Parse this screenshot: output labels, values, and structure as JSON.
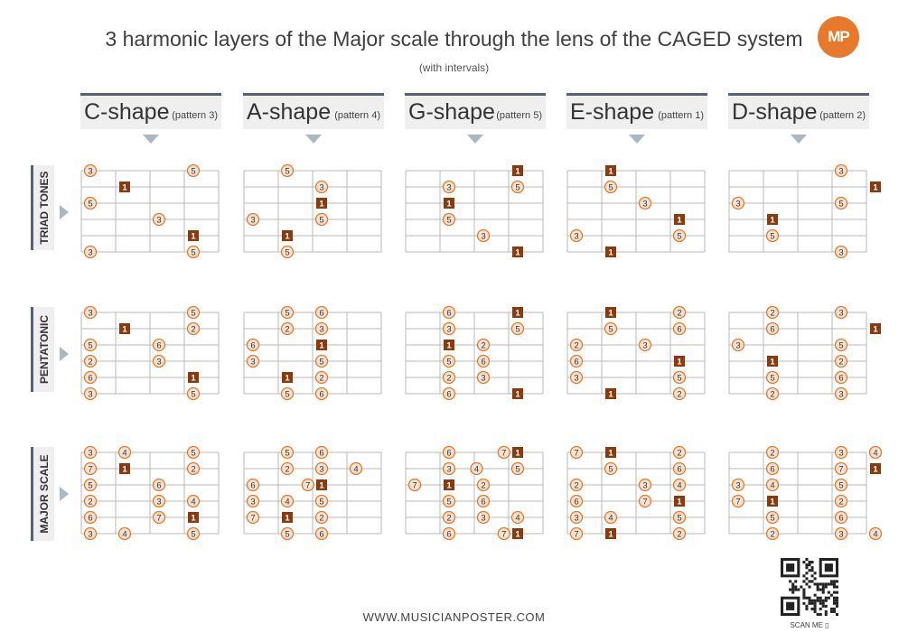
{
  "title": "3 harmonic layers of the Major scale through the lens of the CAGED system",
  "subtitle": "(with intervals)",
  "logo": "MP",
  "footer_url": "WWW.MUSICIANPOSTER.COM",
  "scan_label": "SCAN ME",
  "colors": {
    "root": "#8b3a0c",
    "note_fill": "#fde3cf",
    "note_stroke": "#e8792b",
    "accent": "#4f6478",
    "arrow": "#aab8c4"
  },
  "shapes": [
    {
      "name": "C-shape",
      "pattern": "(pattern 3)"
    },
    {
      "name": "A-shape",
      "pattern": "(pattern 4)"
    },
    {
      "name": "G-shape",
      "pattern": "(pattern 5)"
    },
    {
      "name": "E-shape",
      "pattern": "(pattern 1)"
    },
    {
      "name": "D-shape",
      "pattern": "(pattern 2)"
    }
  ],
  "rows": [
    {
      "label": "TRIAD TONES"
    },
    {
      "label": "PENTATONIC"
    },
    {
      "label": "MAJOR SCALE"
    }
  ],
  "diagrams": [
    [
      [
        {
          "s": 0,
          "p": 0,
          "v": "3"
        },
        {
          "s": 0,
          "p": 3,
          "v": "5"
        },
        {
          "s": 1,
          "p": 1,
          "v": "1",
          "r": true
        },
        {
          "s": 2,
          "p": 0,
          "v": "5"
        },
        {
          "s": 3,
          "p": 2,
          "v": "3"
        },
        {
          "s": 4,
          "p": 3,
          "v": "1",
          "r": true
        },
        {
          "s": 5,
          "p": 0,
          "v": "3"
        },
        {
          "s": 5,
          "p": 3,
          "v": "5"
        }
      ],
      [
        {
          "s": 0,
          "p": 1,
          "v": "5"
        },
        {
          "s": 1,
          "p": 2,
          "v": "3"
        },
        {
          "s": 2,
          "p": 2,
          "v": "1",
          "r": true
        },
        {
          "s": 3,
          "p": 0,
          "v": "3"
        },
        {
          "s": 3,
          "p": 2,
          "v": "5"
        },
        {
          "s": 4,
          "p": 1,
          "v": "1",
          "r": true
        },
        {
          "s": 5,
          "p": 1,
          "v": "5"
        }
      ],
      [
        {
          "s": 0,
          "p": 3,
          "v": "1",
          "r": true
        },
        {
          "s": 1,
          "p": 1,
          "v": "3"
        },
        {
          "s": 1,
          "p": 3,
          "v": "5"
        },
        {
          "s": 2,
          "p": 1,
          "v": "1",
          "r": true
        },
        {
          "s": 3,
          "p": 1,
          "v": "5"
        },
        {
          "s": 4,
          "p": 2,
          "v": "3"
        },
        {
          "s": 5,
          "p": 3,
          "v": "1",
          "r": true
        }
      ],
      [
        {
          "s": 0,
          "p": 1,
          "v": "1",
          "r": true
        },
        {
          "s": 1,
          "p": 1,
          "v": "5"
        },
        {
          "s": 2,
          "p": 2,
          "v": "3"
        },
        {
          "s": 3,
          "p": 3,
          "v": "1",
          "r": true
        },
        {
          "s": 4,
          "p": 0,
          "v": "3"
        },
        {
          "s": 4,
          "p": 3,
          "v": "5"
        },
        {
          "s": 5,
          "p": 1,
          "v": "1",
          "r": true
        }
      ],
      [
        {
          "s": 0,
          "p": 3,
          "v": "3"
        },
        {
          "s": 1,
          "p": 4,
          "v": "1",
          "r": true
        },
        {
          "s": 2,
          "p": 0,
          "v": "3"
        },
        {
          "s": 2,
          "p": 3,
          "v": "5"
        },
        {
          "s": 3,
          "p": 1,
          "v": "1",
          "r": true
        },
        {
          "s": 4,
          "p": 1,
          "v": "5"
        },
        {
          "s": 5,
          "p": 3,
          "v": "3"
        }
      ]
    ],
    [
      [
        {
          "s": 0,
          "p": 0,
          "v": "3"
        },
        {
          "s": 0,
          "p": 3,
          "v": "5"
        },
        {
          "s": 1,
          "p": 1,
          "v": "1",
          "r": true
        },
        {
          "s": 1,
          "p": 3,
          "v": "2"
        },
        {
          "s": 2,
          "p": 0,
          "v": "5"
        },
        {
          "s": 2,
          "p": 2,
          "v": "6"
        },
        {
          "s": 3,
          "p": 0,
          "v": "2"
        },
        {
          "s": 3,
          "p": 2,
          "v": "3"
        },
        {
          "s": 4,
          "p": 0,
          "v": "6"
        },
        {
          "s": 4,
          "p": 3,
          "v": "1",
          "r": true
        },
        {
          "s": 5,
          "p": 0,
          "v": "3"
        },
        {
          "s": 5,
          "p": 3,
          "v": "5"
        }
      ],
      [
        {
          "s": 0,
          "p": 1,
          "v": "5"
        },
        {
          "s": 0,
          "p": 2,
          "v": "6"
        },
        {
          "s": 1,
          "p": 1,
          "v": "2"
        },
        {
          "s": 1,
          "p": 2,
          "v": "3"
        },
        {
          "s": 2,
          "p": 0,
          "v": "6"
        },
        {
          "s": 2,
          "p": 2,
          "v": "1",
          "r": true
        },
        {
          "s": 3,
          "p": 0,
          "v": "3"
        },
        {
          "s": 3,
          "p": 2,
          "v": "5"
        },
        {
          "s": 4,
          "p": 1,
          "v": "1",
          "r": true
        },
        {
          "s": 4,
          "p": 2,
          "v": "2"
        },
        {
          "s": 5,
          "p": 1,
          "v": "5"
        },
        {
          "s": 5,
          "p": 2,
          "v": "6"
        }
      ],
      [
        {
          "s": 0,
          "p": 1,
          "v": "6"
        },
        {
          "s": 0,
          "p": 3,
          "v": "1",
          "r": true
        },
        {
          "s": 1,
          "p": 1,
          "v": "3"
        },
        {
          "s": 1,
          "p": 3,
          "v": "5"
        },
        {
          "s": 2,
          "p": 1,
          "v": "1",
          "r": true
        },
        {
          "s": 2,
          "p": 2,
          "v": "2"
        },
        {
          "s": 3,
          "p": 1,
          "v": "5"
        },
        {
          "s": 3,
          "p": 2,
          "v": "6"
        },
        {
          "s": 4,
          "p": 1,
          "v": "2"
        },
        {
          "s": 4,
          "p": 2,
          "v": "3"
        },
        {
          "s": 5,
          "p": 1,
          "v": "6"
        },
        {
          "s": 5,
          "p": 3,
          "v": "1",
          "r": true
        }
      ],
      [
        {
          "s": 0,
          "p": 1,
          "v": "1",
          "r": true
        },
        {
          "s": 0,
          "p": 3,
          "v": "2"
        },
        {
          "s": 1,
          "p": 1,
          "v": "5"
        },
        {
          "s": 1,
          "p": 3,
          "v": "6"
        },
        {
          "s": 2,
          "p": 0,
          "v": "2"
        },
        {
          "s": 2,
          "p": 2,
          "v": "3"
        },
        {
          "s": 3,
          "p": 0,
          "v": "6"
        },
        {
          "s": 3,
          "p": 3,
          "v": "1",
          "r": true
        },
        {
          "s": 4,
          "p": 0,
          "v": "3"
        },
        {
          "s": 4,
          "p": 3,
          "v": "5"
        },
        {
          "s": 5,
          "p": 1,
          "v": "1",
          "r": true
        },
        {
          "s": 5,
          "p": 3,
          "v": "2"
        }
      ],
      [
        {
          "s": 0,
          "p": 1,
          "v": "2"
        },
        {
          "s": 0,
          "p": 3,
          "v": "3"
        },
        {
          "s": 1,
          "p": 1,
          "v": "6"
        },
        {
          "s": 1,
          "p": 4,
          "v": "1",
          "r": true
        },
        {
          "s": 2,
          "p": 0,
          "v": "3"
        },
        {
          "s": 2,
          "p": 3,
          "v": "5"
        },
        {
          "s": 3,
          "p": 1,
          "v": "1",
          "r": true
        },
        {
          "s": 3,
          "p": 3,
          "v": "2"
        },
        {
          "s": 4,
          "p": 1,
          "v": "5"
        },
        {
          "s": 4,
          "p": 3,
          "v": "6"
        },
        {
          "s": 5,
          "p": 1,
          "v": "2"
        },
        {
          "s": 5,
          "p": 3,
          "v": "3"
        }
      ]
    ],
    [
      [
        {
          "s": 0,
          "p": 0,
          "v": "3"
        },
        {
          "s": 0,
          "p": 1,
          "v": "4"
        },
        {
          "s": 0,
          "p": 3,
          "v": "5"
        },
        {
          "s": 1,
          "p": 0,
          "v": "7"
        },
        {
          "s": 1,
          "p": 1,
          "v": "1",
          "r": true
        },
        {
          "s": 1,
          "p": 3,
          "v": "2"
        },
        {
          "s": 2,
          "p": 0,
          "v": "5"
        },
        {
          "s": 2,
          "p": 2,
          "v": "6"
        },
        {
          "s": 3,
          "p": 0,
          "v": "2"
        },
        {
          "s": 3,
          "p": 2,
          "v": "3"
        },
        {
          "s": 3,
          "p": 3,
          "v": "4"
        },
        {
          "s": 4,
          "p": 0,
          "v": "6"
        },
        {
          "s": 4,
          "p": 2,
          "v": "7"
        },
        {
          "s": 4,
          "p": 3,
          "v": "1",
          "r": true
        },
        {
          "s": 5,
          "p": 0,
          "v": "3"
        },
        {
          "s": 5,
          "p": 1,
          "v": "4"
        },
        {
          "s": 5,
          "p": 3,
          "v": "5"
        }
      ],
      [
        {
          "s": 0,
          "p": 1,
          "v": "5"
        },
        {
          "s": 0,
          "p": 2,
          "v": "6"
        },
        {
          "s": 1,
          "p": 1,
          "v": "2"
        },
        {
          "s": 1,
          "p": 2,
          "v": "3"
        },
        {
          "s": 1,
          "p": 3,
          "v": "4"
        },
        {
          "s": 2,
          "p": 0,
          "v": "6"
        },
        {
          "s": 2,
          "p": 1.6,
          "v": "7"
        },
        {
          "s": 2,
          "p": 2,
          "v": "1",
          "r": true
        },
        {
          "s": 3,
          "p": 0,
          "v": "3"
        },
        {
          "s": 3,
          "p": 1,
          "v": "4"
        },
        {
          "s": 3,
          "p": 2,
          "v": "5"
        },
        {
          "s": 4,
          "p": 0,
          "v": "7"
        },
        {
          "s": 4,
          "p": 1,
          "v": "1",
          "r": true
        },
        {
          "s": 4,
          "p": 2,
          "v": "2"
        },
        {
          "s": 5,
          "p": 1,
          "v": "5"
        },
        {
          "s": 5,
          "p": 2,
          "v": "6"
        }
      ],
      [
        {
          "s": 0,
          "p": 1,
          "v": "6"
        },
        {
          "s": 0,
          "p": 2.6,
          "v": "7"
        },
        {
          "s": 0,
          "p": 3,
          "v": "1",
          "r": true
        },
        {
          "s": 1,
          "p": 1,
          "v": "3"
        },
        {
          "s": 1,
          "p": 1.8,
          "v": "4"
        },
        {
          "s": 1,
          "p": 3,
          "v": "5"
        },
        {
          "s": 2,
          "p": 0,
          "v": "7"
        },
        {
          "s": 2,
          "p": 1,
          "v": "1",
          "r": true
        },
        {
          "s": 2,
          "p": 2,
          "v": "2"
        },
        {
          "s": 3,
          "p": 1,
          "v": "5"
        },
        {
          "s": 3,
          "p": 2,
          "v": "6"
        },
        {
          "s": 4,
          "p": 1,
          "v": "2"
        },
        {
          "s": 4,
          "p": 2,
          "v": "3"
        },
        {
          "s": 4,
          "p": 3,
          "v": "4"
        },
        {
          "s": 5,
          "p": 1,
          "v": "6"
        },
        {
          "s": 5,
          "p": 2.6,
          "v": "7"
        },
        {
          "s": 5,
          "p": 3,
          "v": "1",
          "r": true
        }
      ],
      [
        {
          "s": 0,
          "p": 0,
          "v": "7"
        },
        {
          "s": 0,
          "p": 1,
          "v": "1",
          "r": true
        },
        {
          "s": 0,
          "p": 3,
          "v": "2"
        },
        {
          "s": 1,
          "p": 1,
          "v": "5"
        },
        {
          "s": 1,
          "p": 3,
          "v": "6"
        },
        {
          "s": 2,
          "p": 0,
          "v": "2"
        },
        {
          "s": 2,
          "p": 2,
          "v": "3"
        },
        {
          "s": 2,
          "p": 3,
          "v": "4"
        },
        {
          "s": 3,
          "p": 0,
          "v": "6"
        },
        {
          "s": 3,
          "p": 2,
          "v": "7"
        },
        {
          "s": 3,
          "p": 3,
          "v": "1",
          "r": true
        },
        {
          "s": 4,
          "p": 0,
          "v": "3"
        },
        {
          "s": 4,
          "p": 1,
          "v": "4"
        },
        {
          "s": 4,
          "p": 3,
          "v": "5"
        },
        {
          "s": 5,
          "p": 0,
          "v": "7"
        },
        {
          "s": 5,
          "p": 1,
          "v": "1",
          "r": true
        },
        {
          "s": 5,
          "p": 3,
          "v": "2"
        }
      ],
      [
        {
          "s": 0,
          "p": 1,
          "v": "2"
        },
        {
          "s": 0,
          "p": 3,
          "v": "3"
        },
        {
          "s": 0,
          "p": 4,
          "v": "4"
        },
        {
          "s": 1,
          "p": 1,
          "v": "6"
        },
        {
          "s": 1,
          "p": 3,
          "v": "7"
        },
        {
          "s": 1,
          "p": 4,
          "v": "1",
          "r": true
        },
        {
          "s": 2,
          "p": 0,
          "v": "3"
        },
        {
          "s": 2,
          "p": 1,
          "v": "4"
        },
        {
          "s": 2,
          "p": 3,
          "v": "5"
        },
        {
          "s": 3,
          "p": 0,
          "v": "7"
        },
        {
          "s": 3,
          "p": 1,
          "v": "1",
          "r": true
        },
        {
          "s": 3,
          "p": 3,
          "v": "2"
        },
        {
          "s": 4,
          "p": 1,
          "v": "5"
        },
        {
          "s": 4,
          "p": 3,
          "v": "6"
        },
        {
          "s": 5,
          "p": 1,
          "v": "2"
        },
        {
          "s": 5,
          "p": 3,
          "v": "3"
        },
        {
          "s": 5,
          "p": 4,
          "v": "4"
        }
      ]
    ]
  ]
}
